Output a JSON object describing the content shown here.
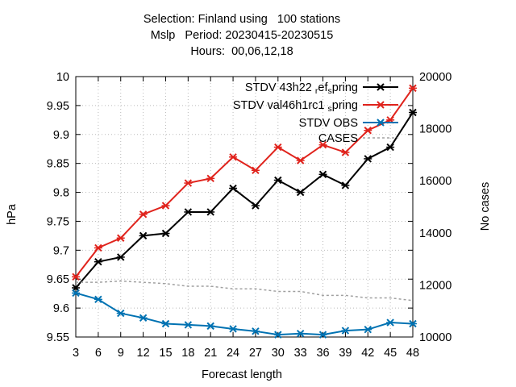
{
  "title_lines": [
    "Selection: Finland using   100 stations",
    "Mslp   Period: 20230415-20230515",
    "Hours:  00,06,12,18"
  ],
  "colors": {
    "ref": "#000000",
    "val": "#e0231c",
    "obs": "#0072b2",
    "cases": "#a0a0a0",
    "grid": "#bbbbbb"
  },
  "chart_data": {
    "type": "line",
    "xlabel": "Forecast length",
    "ylabel": "hPa",
    "y2label": "No cases",
    "x": [
      3,
      6,
      9,
      12,
      15,
      18,
      21,
      24,
      27,
      30,
      33,
      36,
      39,
      42,
      45,
      48
    ],
    "xlim": [
      3,
      48
    ],
    "ylim": [
      9.55,
      10.0
    ],
    "y2lim": [
      10000,
      20000
    ],
    "yticks": [
      "9.55",
      "9.6",
      "9.65",
      "9.7",
      "9.75",
      "9.8",
      "9.85",
      "9.9",
      "9.95",
      "10"
    ],
    "y2ticks": [
      "10000",
      "12000",
      "14000",
      "16000",
      "18000",
      "20000"
    ],
    "grid": true,
    "legend_position": "top-right",
    "series": [
      {
        "key": "ref",
        "name": "STDV 43h22",
        "name_sub1": "r",
        "name_mid": "ef",
        "name_sub2": "s",
        "name_end": "pring",
        "axis": "y",
        "values": [
          9.635,
          9.68,
          9.688,
          9.725,
          9.729,
          9.766,
          9.766,
          9.807,
          9.777,
          9.821,
          9.8,
          9.831,
          9.812,
          9.858,
          9.878,
          9.938
        ]
      },
      {
        "key": "val",
        "name": "STDV val46h1rc1",
        "name_sub1": "s",
        "name_end": "pring",
        "axis": "y",
        "values": [
          9.654,
          9.704,
          9.721,
          9.762,
          9.777,
          9.816,
          9.824,
          9.861,
          9.838,
          9.878,
          9.855,
          9.882,
          9.869,
          9.907,
          9.925,
          9.98
        ]
      },
      {
        "key": "obs",
        "name": "STDV OBS",
        "axis": "y",
        "values": [
          9.626,
          9.615,
          9.591,
          9.583,
          9.573,
          9.571,
          9.569,
          9.564,
          9.56,
          9.554,
          9.556,
          9.554,
          9.561,
          9.563,
          9.575,
          9.573
        ]
      },
      {
        "key": "cases",
        "name": "CASES",
        "axis": "y2",
        "values": [
          12100,
          12100,
          12150,
          12100,
          12050,
          11950,
          11950,
          11850,
          11850,
          11750,
          11750,
          11600,
          11600,
          11500,
          11500,
          11400
        ]
      }
    ]
  }
}
